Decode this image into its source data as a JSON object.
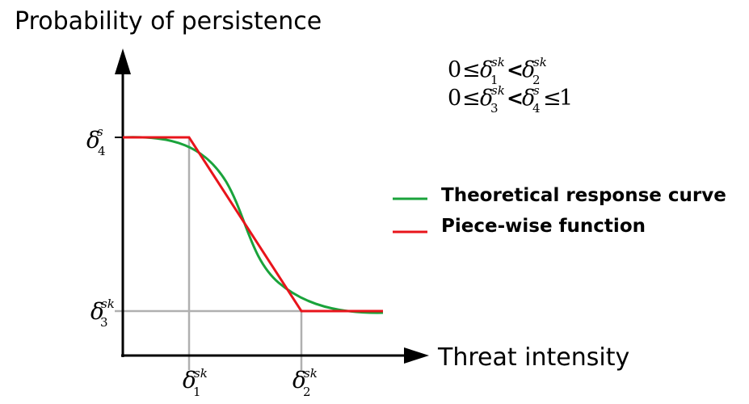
{
  "y_axis_label": "Probability of persistence",
  "x_axis_label": "Threat intensity",
  "legend": [
    {
      "label": "Theoretical response curve",
      "color": "#1aa33b"
    },
    {
      "label": "Piece-wise function",
      "color": "#e8141b"
    }
  ],
  "tick_labels": {
    "delta": "δ",
    "y_top_sup": "s",
    "y_top_sub": "4",
    "y_low_sup": "sk",
    "y_low_sub": "3",
    "x_left_sup": "sk",
    "x_left_sub": "1",
    "x_right_sup": "sk",
    "x_right_sub": "2"
  },
  "constraints": {
    "line1": {
      "zero": "0",
      "le": "≤",
      "lt": "<",
      "d1_sup": "sk",
      "d1_sub": "1",
      "d2_sup": "sk",
      "d2_sub": "2"
    },
    "line2": {
      "zero": "0",
      "le": "≤",
      "lt": "<",
      "le2": "≤",
      "one": "1",
      "d3_sup": "sk",
      "d3_sub": "3",
      "d4_sup": "s",
      "d4_sub": "4"
    }
  },
  "colors": {
    "axis": "#000000",
    "guide": "#b0b0b0",
    "theoretical": "#1aa33b",
    "piecewise": "#e8141b"
  }
}
